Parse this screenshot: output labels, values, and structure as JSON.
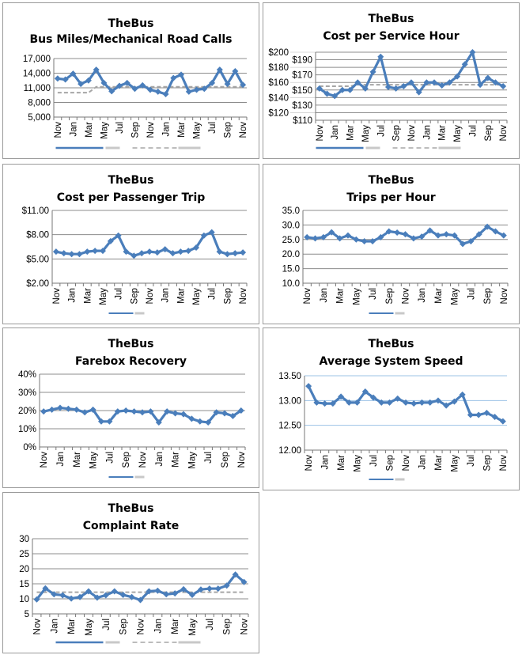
{
  "x_labels": [
    "Nov",
    "Jan",
    "Mar",
    "May",
    "Jul",
    "Sep",
    "Nov",
    "Jan",
    "Mar",
    "May",
    "Jul",
    "Sep",
    "Nov"
  ],
  "colors": {
    "series": "#4a7ebb",
    "target": "#a6a6a6",
    "grid": "#8c8c8c",
    "grid_speed": "#9dc3e6"
  },
  "chart_data": [
    {
      "type": "line",
      "title": "TheBus",
      "subtitle": "Bus Miles/Mechanical Road Calls",
      "ylim": [
        5000,
        17000
      ],
      "yticks": [
        5000,
        8000,
        11000,
        14000,
        17000
      ],
      "ytick_labels": [
        "5,000",
        "8,000",
        "11,000",
        "14,000",
        "17,000"
      ],
      "grid": true,
      "legend": "bottom",
      "series": [
        {
          "values": [
            12900,
            12700,
            13900,
            11800,
            12500,
            14700,
            12000,
            10300,
            11400,
            12000,
            10800,
            11500,
            10600,
            10200,
            9700,
            13000,
            13700,
            10200,
            10600,
            10800,
            12000,
            14700,
            11800,
            14400,
            11600
          ]
        },
        {
          "style": "dashed",
          "values": [
            10000,
            10000,
            10000,
            10000,
            10000,
            11200,
            11200,
            11200,
            11200,
            11200,
            11200,
            11200,
            11200,
            11200,
            11200,
            11200,
            11200,
            11200,
            11200,
            11200,
            11200,
            11200,
            11200,
            11200,
            11200
          ]
        }
      ]
    },
    {
      "type": "line",
      "title": "TheBus",
      "subtitle": "Cost per Service Hour",
      "ylim": [
        110,
        200
      ],
      "yticks": [
        110,
        120,
        130,
        140,
        150,
        160,
        170,
        180,
        190,
        200
      ],
      "ytick_labels": [
        "$110",
        "$120",
        "$130",
        "$140",
        "$150",
        "$160",
        "$170",
        "$180",
        "$190",
        "$200"
      ],
      "grid": true,
      "legend": "bottom",
      "series": [
        {
          "values": [
            152,
            145,
            142,
            150,
            150,
            160,
            152,
            174,
            194,
            154,
            152,
            155,
            160,
            147,
            160,
            160,
            156,
            160,
            168,
            184,
            200,
            157,
            166,
            160,
            155
          ]
        },
        {
          "style": "dashed",
          "values": [
            155,
            155,
            155,
            155,
            155,
            157,
            157,
            157,
            157,
            157,
            157,
            157,
            157,
            157,
            157,
            157,
            157,
            157,
            157,
            157,
            157,
            157,
            157,
            157,
            157
          ]
        }
      ]
    },
    {
      "type": "line",
      "title": "TheBus",
      "subtitle": "Cost per Passenger Trip",
      "ylim": [
        2,
        11
      ],
      "yticks": [
        2,
        5,
        8,
        11
      ],
      "ytick_labels": [
        "$2.00",
        "$5.00",
        "$8.00",
        "$11.00"
      ],
      "grid": true,
      "legend": "bottom",
      "series": [
        {
          "values": [
            5.9,
            5.7,
            5.6,
            5.6,
            5.9,
            6.0,
            6.0,
            7.2,
            7.9,
            5.9,
            5.4,
            5.7,
            5.9,
            5.8,
            6.2,
            5.7,
            5.9,
            6.0,
            6.4,
            7.9,
            8.3,
            5.9,
            5.6,
            5.7,
            5.8
          ]
        }
      ]
    },
    {
      "type": "line",
      "title": "TheBus",
      "subtitle": "Trips per Hour",
      "ylim": [
        10,
        35
      ],
      "yticks": [
        10,
        15,
        20,
        25,
        30,
        35
      ],
      "ytick_labels": [
        "10.0",
        "15.0",
        "20.0",
        "25.0",
        "30.0",
        "35.0"
      ],
      "grid": true,
      "legend": "bottom",
      "series": [
        {
          "values": [
            25.8,
            25.4,
            25.8,
            27.5,
            25.4,
            26.4,
            25.0,
            24.4,
            24.4,
            25.8,
            27.8,
            27.4,
            26.8,
            25.4,
            26.0,
            28.1,
            26.4,
            26.8,
            26.4,
            23.5,
            24.4,
            26.8,
            29.4,
            27.8,
            26.4
          ]
        }
      ]
    },
    {
      "type": "line",
      "title": "TheBus",
      "subtitle": "Farebox Recovery",
      "ylim": [
        0,
        40
      ],
      "yticks": [
        0,
        10,
        20,
        30,
        40
      ],
      "ytick_labels": [
        "0%",
        "10%",
        "20%",
        "30%",
        "40%"
      ],
      "grid": true,
      "legend": "bottom",
      "series": [
        {
          "values": [
            19.5,
            20.5,
            21.5,
            21,
            20.5,
            19,
            20.5,
            14,
            14,
            19.5,
            20,
            19.5,
            19,
            19.5,
            13.5,
            19.5,
            18.5,
            18,
            15.5,
            14,
            13.5,
            19,
            18.5,
            17,
            20
          ]
        }
      ]
    },
    {
      "type": "line",
      "title": "TheBus",
      "subtitle": "Average System Speed",
      "ylim": [
        12,
        13.5
      ],
      "yticks": [
        12,
        12.5,
        13,
        13.5
      ],
      "ytick_labels": [
        "12.00",
        "12.50",
        "13.00",
        "13.50"
      ],
      "grid": true,
      "legend": "bottom",
      "series": [
        {
          "values": [
            13.29,
            12.96,
            12.94,
            12.94,
            13.08,
            12.96,
            12.96,
            13.18,
            13.06,
            12.96,
            12.96,
            13.04,
            12.96,
            12.94,
            12.96,
            12.96,
            13.0,
            12.9,
            12.98,
            13.12,
            12.71,
            12.71,
            12.75,
            12.67,
            12.58
          ]
        }
      ]
    },
    {
      "type": "line",
      "title": "TheBus",
      "subtitle": "Complaint Rate",
      "ylim": [
        5,
        30
      ],
      "yticks": [
        5,
        10,
        15,
        20,
        25,
        30
      ],
      "ytick_labels": [
        "5",
        "10",
        "15",
        "20",
        "25",
        "30"
      ],
      "grid": true,
      "legend": "bottom",
      "series": [
        {
          "values": [
            9.8,
            13.5,
            11.5,
            11.2,
            10.1,
            10.6,
            12.5,
            10.4,
            11.2,
            12.5,
            11.3,
            10.6,
            9.6,
            12.5,
            12.7,
            11.5,
            11.8,
            13.2,
            11.3,
            13.1,
            13.4,
            13.4,
            14.4,
            18.1,
            15.6
          ]
        },
        {
          "style": "dashed",
          "values": [
            12.2,
            12.2,
            12.2,
            12.2,
            12.2,
            12.2,
            12.2,
            12.2,
            12.2,
            12.2,
            12.2,
            12.2,
            12.2,
            12.2,
            12.2,
            12.2,
            12.2,
            12.2,
            12.2,
            12.2,
            12.2,
            12.2,
            12.2,
            12.2,
            12.2
          ]
        }
      ]
    }
  ]
}
